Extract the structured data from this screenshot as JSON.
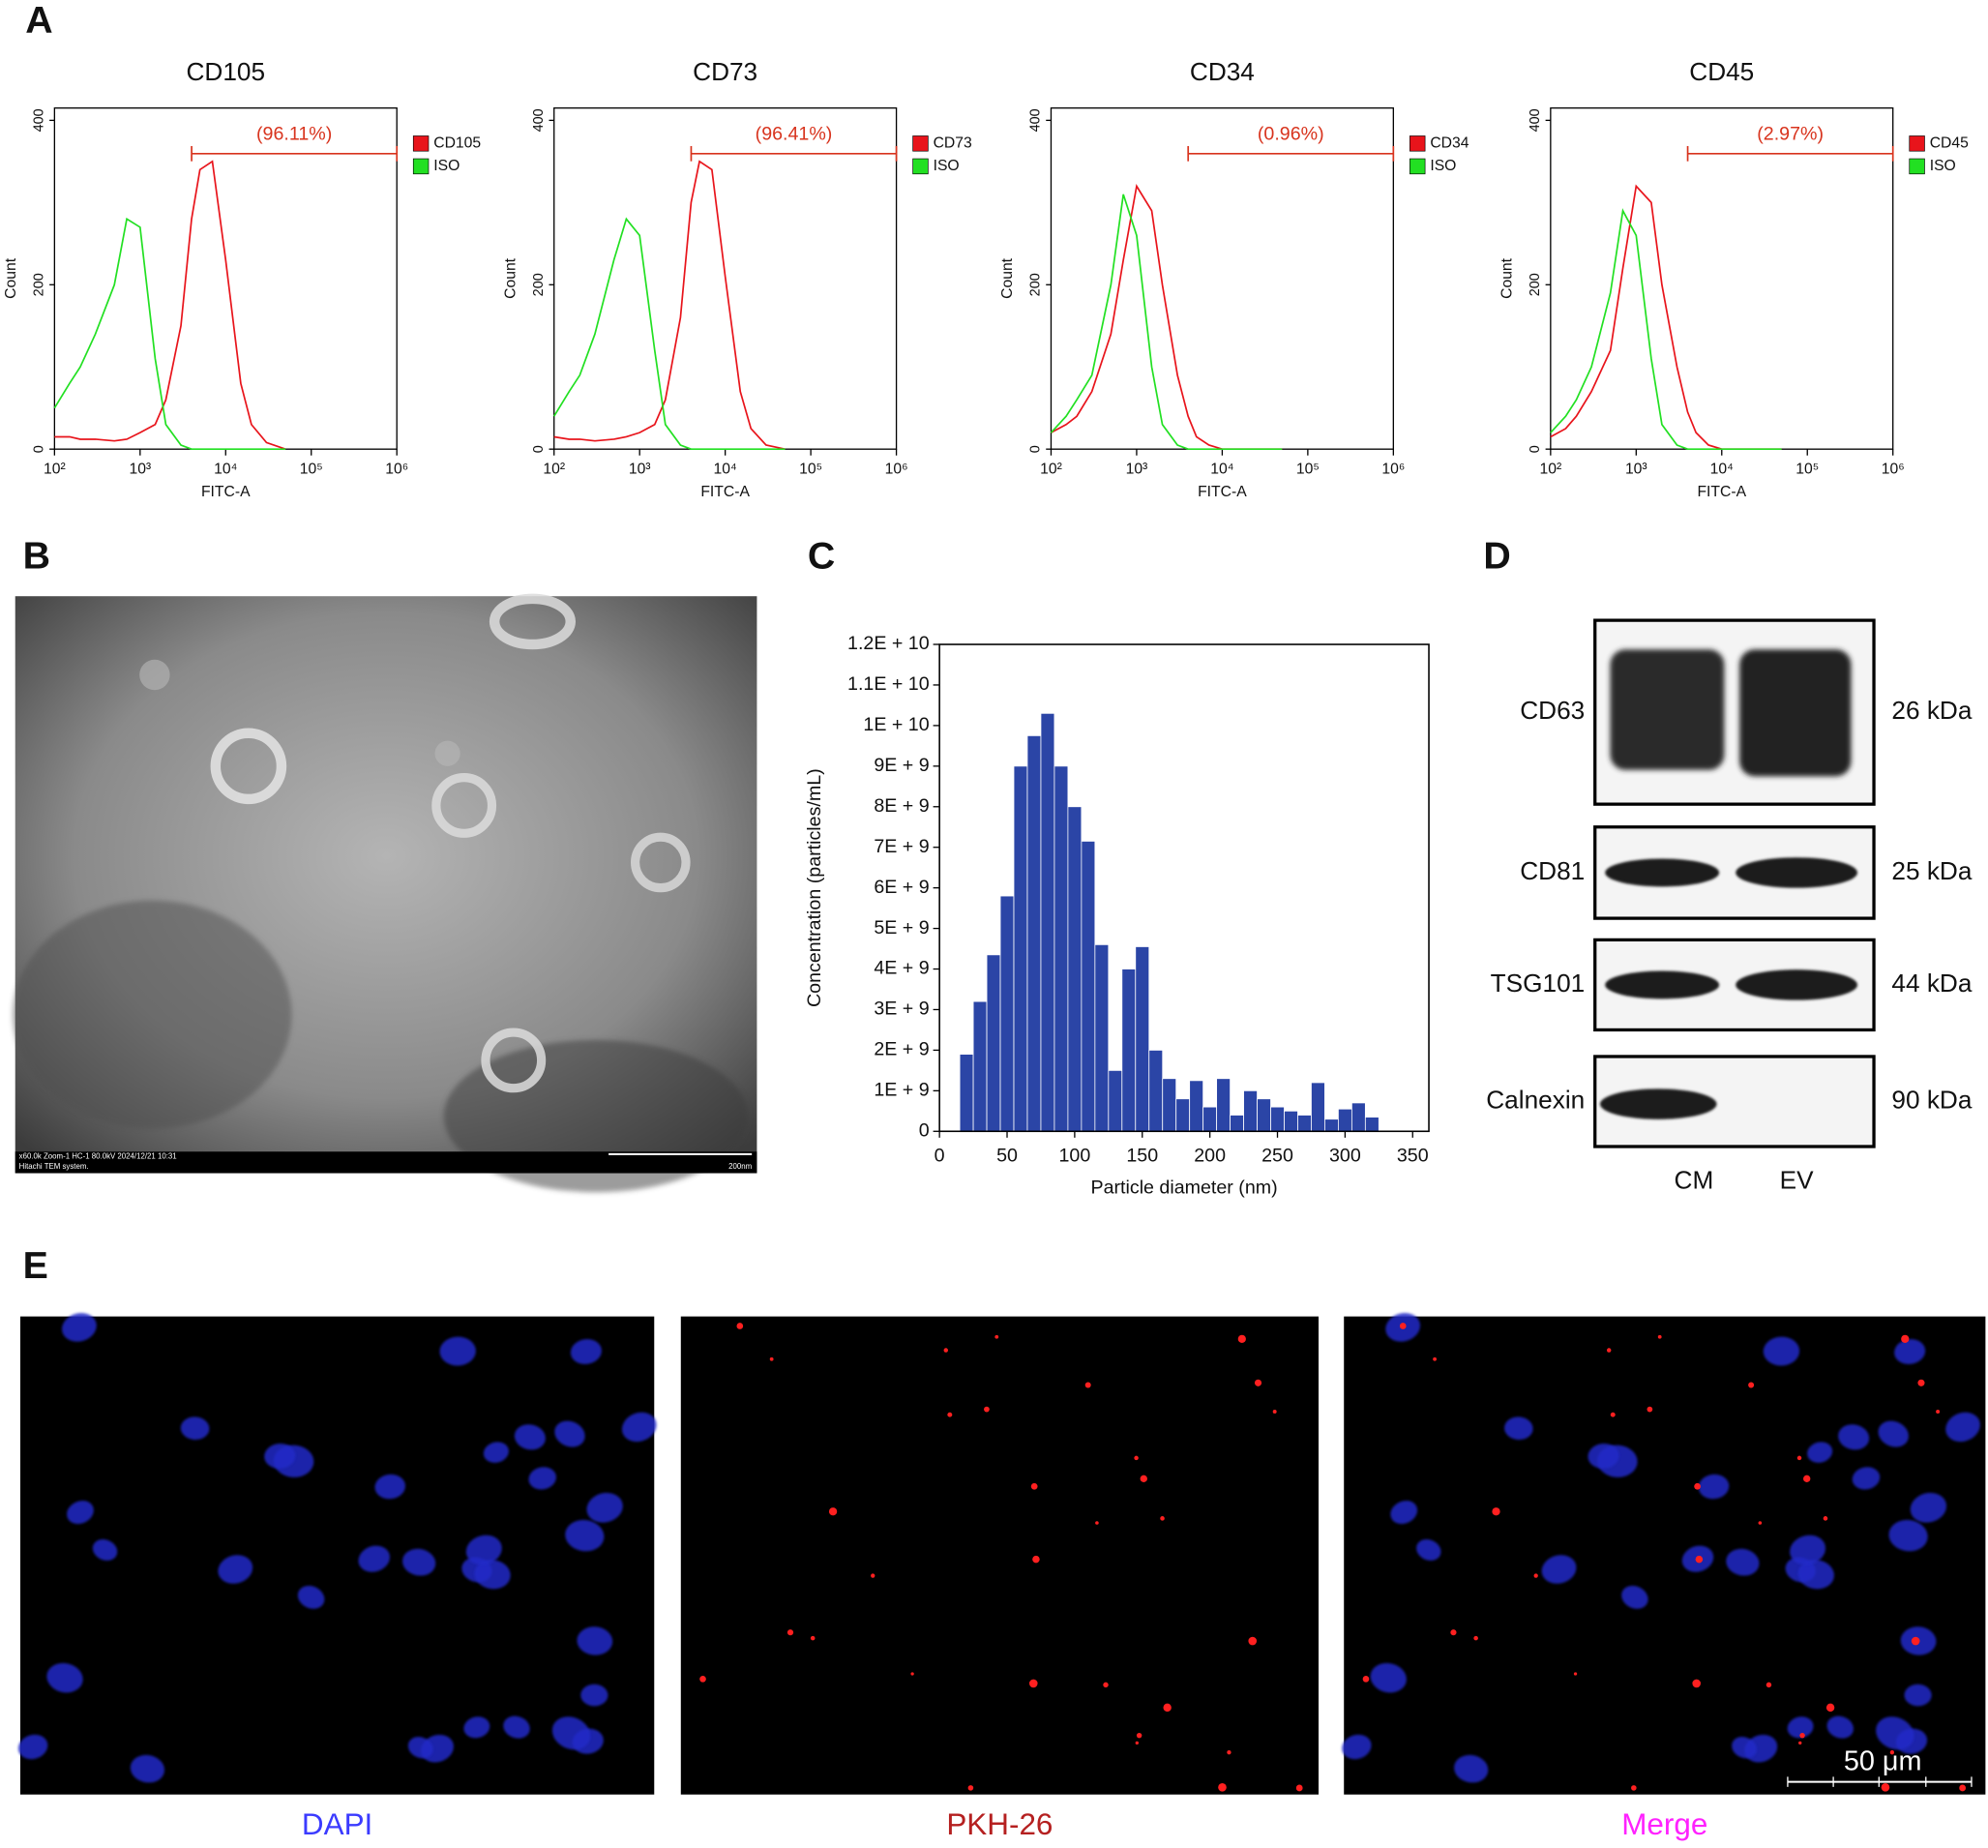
{
  "chart_data": [
    {
      "type": "line",
      "title": "CD105",
      "x_label": "FITC-A",
      "y_label": "Count",
      "x_scale": "log",
      "x": [
        100,
        150,
        200,
        300,
        500,
        700,
        1000,
        1500,
        2000,
        3000,
        4000,
        5000,
        7000,
        10000,
        15000,
        20000,
        30000,
        50000
      ],
      "xlim": [
        100,
        1000000
      ],
      "xticks": [
        {
          "value": 100,
          "label": "10²"
        },
        {
          "value": 1000,
          "label": "10³"
        },
        {
          "value": 10000,
          "label": "10⁴"
        },
        {
          "value": 100000,
          "label": "10⁵"
        },
        {
          "value": 1000000,
          "label": "10⁶"
        }
      ],
      "ylim": [
        0,
        415
      ],
      "yticks": [
        0,
        200,
        400
      ],
      "series": [
        {
          "name": "CD105",
          "color": "#e8141b",
          "values": [
            15,
            15,
            12,
            12,
            10,
            12,
            20,
            30,
            60,
            150,
            280,
            340,
            350,
            230,
            80,
            30,
            8,
            0
          ]
        },
        {
          "name": "ISO",
          "color": "#22e022",
          "values": [
            50,
            80,
            100,
            140,
            200,
            280,
            270,
            110,
            30,
            5,
            0,
            0,
            0,
            0,
            0,
            0,
            0,
            0
          ]
        }
      ],
      "gate": {
        "range": [
          4000,
          1000000
        ],
        "label": "(96.11%)"
      }
    },
    {
      "type": "line",
      "title": "CD73",
      "x_label": "FITC-A",
      "y_label": "Count",
      "x_scale": "log",
      "x": [
        100,
        150,
        200,
        300,
        500,
        700,
        1000,
        1500,
        2000,
        3000,
        4000,
        5000,
        7000,
        10000,
        15000,
        20000,
        30000,
        50000
      ],
      "xlim": [
        100,
        1000000
      ],
      "xticks": [
        {
          "value": 100,
          "label": "10²"
        },
        {
          "value": 1000,
          "label": "10³"
        },
        {
          "value": 10000,
          "label": "10⁴"
        },
        {
          "value": 100000,
          "label": "10⁵"
        },
        {
          "value": 1000000,
          "label": "10⁶"
        }
      ],
      "ylim": [
        0,
        415
      ],
      "yticks": [
        0,
        200,
        400
      ],
      "series": [
        {
          "name": "CD73",
          "color": "#e8141b",
          "values": [
            15,
            12,
            12,
            10,
            12,
            15,
            20,
            30,
            60,
            160,
            300,
            350,
            340,
            210,
            70,
            25,
            5,
            0
          ]
        },
        {
          "name": "ISO",
          "color": "#22e022",
          "values": [
            40,
            70,
            90,
            140,
            230,
            280,
            260,
            120,
            30,
            5,
            0,
            0,
            0,
            0,
            0,
            0,
            0,
            0
          ]
        }
      ],
      "gate": {
        "range": [
          4000,
          1000000
        ],
        "label": "(96.41%)"
      }
    },
    {
      "type": "line",
      "title": "CD34",
      "x_label": "FITC-A",
      "y_label": "Count",
      "x_scale": "log",
      "x": [
        100,
        150,
        200,
        300,
        500,
        700,
        1000,
        1500,
        2000,
        3000,
        4000,
        5000,
        7000,
        10000,
        15000,
        20000,
        30000,
        50000
      ],
      "xlim": [
        100,
        1000000
      ],
      "xticks": [
        {
          "value": 100,
          "label": "10²"
        },
        {
          "value": 1000,
          "label": "10³"
        },
        {
          "value": 10000,
          "label": "10⁴"
        },
        {
          "value": 100000,
          "label": "10⁵"
        },
        {
          "value": 1000000,
          "label": "10⁶"
        }
      ],
      "ylim": [
        0,
        415
      ],
      "yticks": [
        0,
        200,
        400
      ],
      "series": [
        {
          "name": "CD34",
          "color": "#e8141b",
          "values": [
            20,
            30,
            40,
            70,
            140,
            230,
            320,
            290,
            200,
            90,
            40,
            15,
            5,
            0,
            0,
            0,
            0,
            0
          ]
        },
        {
          "name": "ISO",
          "color": "#22e022",
          "values": [
            20,
            40,
            60,
            90,
            200,
            310,
            260,
            100,
            30,
            5,
            0,
            0,
            0,
            0,
            0,
            0,
            0,
            0
          ]
        }
      ],
      "gate": {
        "range": [
          4000,
          1000000
        ],
        "label": "(0.96%)"
      }
    },
    {
      "type": "line",
      "title": "CD45",
      "x_label": "FITC-A",
      "y_label": "Count",
      "x_scale": "log",
      "x": [
        100,
        150,
        200,
        300,
        500,
        700,
        1000,
        1500,
        2000,
        3000,
        4000,
        5000,
        7000,
        10000,
        15000,
        20000,
        30000,
        50000
      ],
      "xlim": [
        100,
        1000000
      ],
      "xticks": [
        {
          "value": 100,
          "label": "10²"
        },
        {
          "value": 1000,
          "label": "10³"
        },
        {
          "value": 10000,
          "label": "10⁴"
        },
        {
          "value": 100000,
          "label": "10⁵"
        },
        {
          "value": 1000000,
          "label": "10⁶"
        }
      ],
      "ylim": [
        0,
        415
      ],
      "yticks": [
        0,
        200,
        400
      ],
      "series": [
        {
          "name": "CD45",
          "color": "#e8141b",
          "values": [
            15,
            25,
            40,
            70,
            120,
            220,
            320,
            300,
            200,
            100,
            45,
            20,
            5,
            0,
            0,
            0,
            0,
            0
          ]
        },
        {
          "name": "ISO",
          "color": "#22e022",
          "values": [
            20,
            40,
            60,
            100,
            190,
            290,
            260,
            110,
            30,
            5,
            0,
            0,
            0,
            0,
            0,
            0,
            0,
            0
          ]
        }
      ],
      "gate": {
        "range": [
          4000,
          1000000
        ],
        "label": "(2.97%)"
      }
    },
    {
      "type": "histogram",
      "x_label": "Particle diameter (nm)",
      "y_label": "Concentration (particles/mL)",
      "color": "#2b45a6",
      "bins": [
        15,
        25,
        35,
        45,
        55,
        65,
        75,
        85,
        95,
        105,
        115,
        125,
        135,
        145,
        155,
        165,
        175,
        185,
        195,
        205,
        215,
        225,
        235,
        245,
        255,
        265,
        275,
        285,
        295,
        305,
        315,
        325
      ],
      "values": [
        1900000000.0,
        3200000000.0,
        4350000000.0,
        5800000000.0,
        9000000000.0,
        9750000000.0,
        10300000000.0,
        9000000000.0,
        8000000000.0,
        7150000000.0,
        4600000000.0,
        1500000000.0,
        4000000000.0,
        4550000000.0,
        2000000000.0,
        1300000000.0,
        800000000.0,
        1250000000.0,
        600000000.0,
        1300000000.0,
        400000000.0,
        1000000000.0,
        800000000.0,
        600000000.0,
        500000000.0,
        400000000.0,
        1200000000.0,
        300000000.0,
        550000000.0,
        700000000.0,
        350000000.0
      ],
      "xlim": [
        0,
        362
      ],
      "xticks": [
        0,
        50,
        100,
        150,
        200,
        250,
        300,
        350
      ],
      "ylim": [
        0,
        12000000000.0
      ],
      "yticks": [
        0,
        {
          "value": 1000000000.0,
          "label": "1E + 9"
        },
        {
          "value": 2000000000.0,
          "label": "2E + 9"
        },
        {
          "value": 3000000000.0,
          "label": "3E + 9"
        },
        {
          "value": 4000000000.0,
          "label": "4E + 9"
        },
        {
          "value": 5000000000.0,
          "label": "5E + 9"
        },
        {
          "value": 6000000000.0,
          "label": "6E + 9"
        },
        {
          "value": 7000000000.0,
          "label": "7E + 9"
        },
        {
          "value": 8000000000.0,
          "label": "8E + 9"
        },
        {
          "value": 9000000000.0,
          "label": "9E + 9"
        },
        {
          "value": 10000000000.0,
          "label": "1E + 10"
        },
        {
          "value": 11000000000.0,
          "label": "1.1E + 10"
        },
        {
          "value": 12000000000.0,
          "label": "1.2E + 10"
        }
      ]
    }
  ],
  "figure": {
    "panel_labels": [
      "A",
      "B",
      "C",
      "D",
      "E"
    ],
    "tem": {
      "caption": "x60.0k Zoom-1 HC-1 80.0kV 2024/12/21 10:31",
      "system": "Hitachi TEM system.",
      "scale": "200nm"
    },
    "blot": {
      "rows": [
        {
          "protein": "CD63",
          "size": "26 kDa"
        },
        {
          "protein": "CD81",
          "size": "25 kDa"
        },
        {
          "protein": "TSG101",
          "size": "44 kDa"
        },
        {
          "protein": "Calnexin",
          "size": "90 kDa"
        }
      ],
      "lanes": [
        "CM",
        "EV"
      ]
    },
    "fluorescence": {
      "channels": [
        "DAPI",
        "PKH-26",
        "Merge"
      ],
      "scale_bar": "50 μm"
    }
  }
}
